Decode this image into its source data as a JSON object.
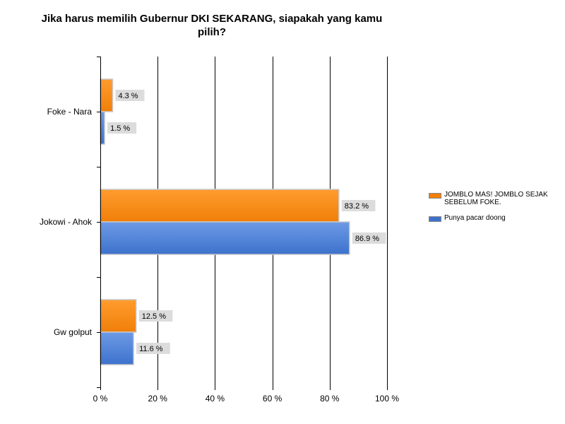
{
  "chart_data": {
    "type": "bar",
    "orientation": "horizontal",
    "title": "Jika harus memilih Gubernur DKI SEKARANG, siapakah yang kamu pilih?",
    "categories": [
      "Foke - Nara",
      "Jokowi - Ahok",
      "Gw golput"
    ],
    "series": [
      {
        "name": "JOMBLO MAS! JOMBLO SEJAK SEBELUM FOKE.",
        "values": [
          4.3,
          83.2,
          12.5
        ],
        "labels": [
          "4.3 %",
          "83.2 %",
          "12.5 %"
        ],
        "color": "#f07f09",
        "color_light": "#ff9c2e"
      },
      {
        "name": "Punya pacar doong",
        "values": [
          1.5,
          86.9,
          11.6
        ],
        "labels": [
          "1.5 %",
          "86.9 %",
          "11.6 %"
        ],
        "color": "#3d72cc",
        "color_light": "#6d9ae6"
      }
    ],
    "xlim": [
      0,
      100
    ],
    "x_ticks": [
      "0 %",
      "20 %",
      "40 %",
      "60 %",
      "80 %",
      "100 %"
    ],
    "grid": true,
    "legend_position": "right"
  }
}
